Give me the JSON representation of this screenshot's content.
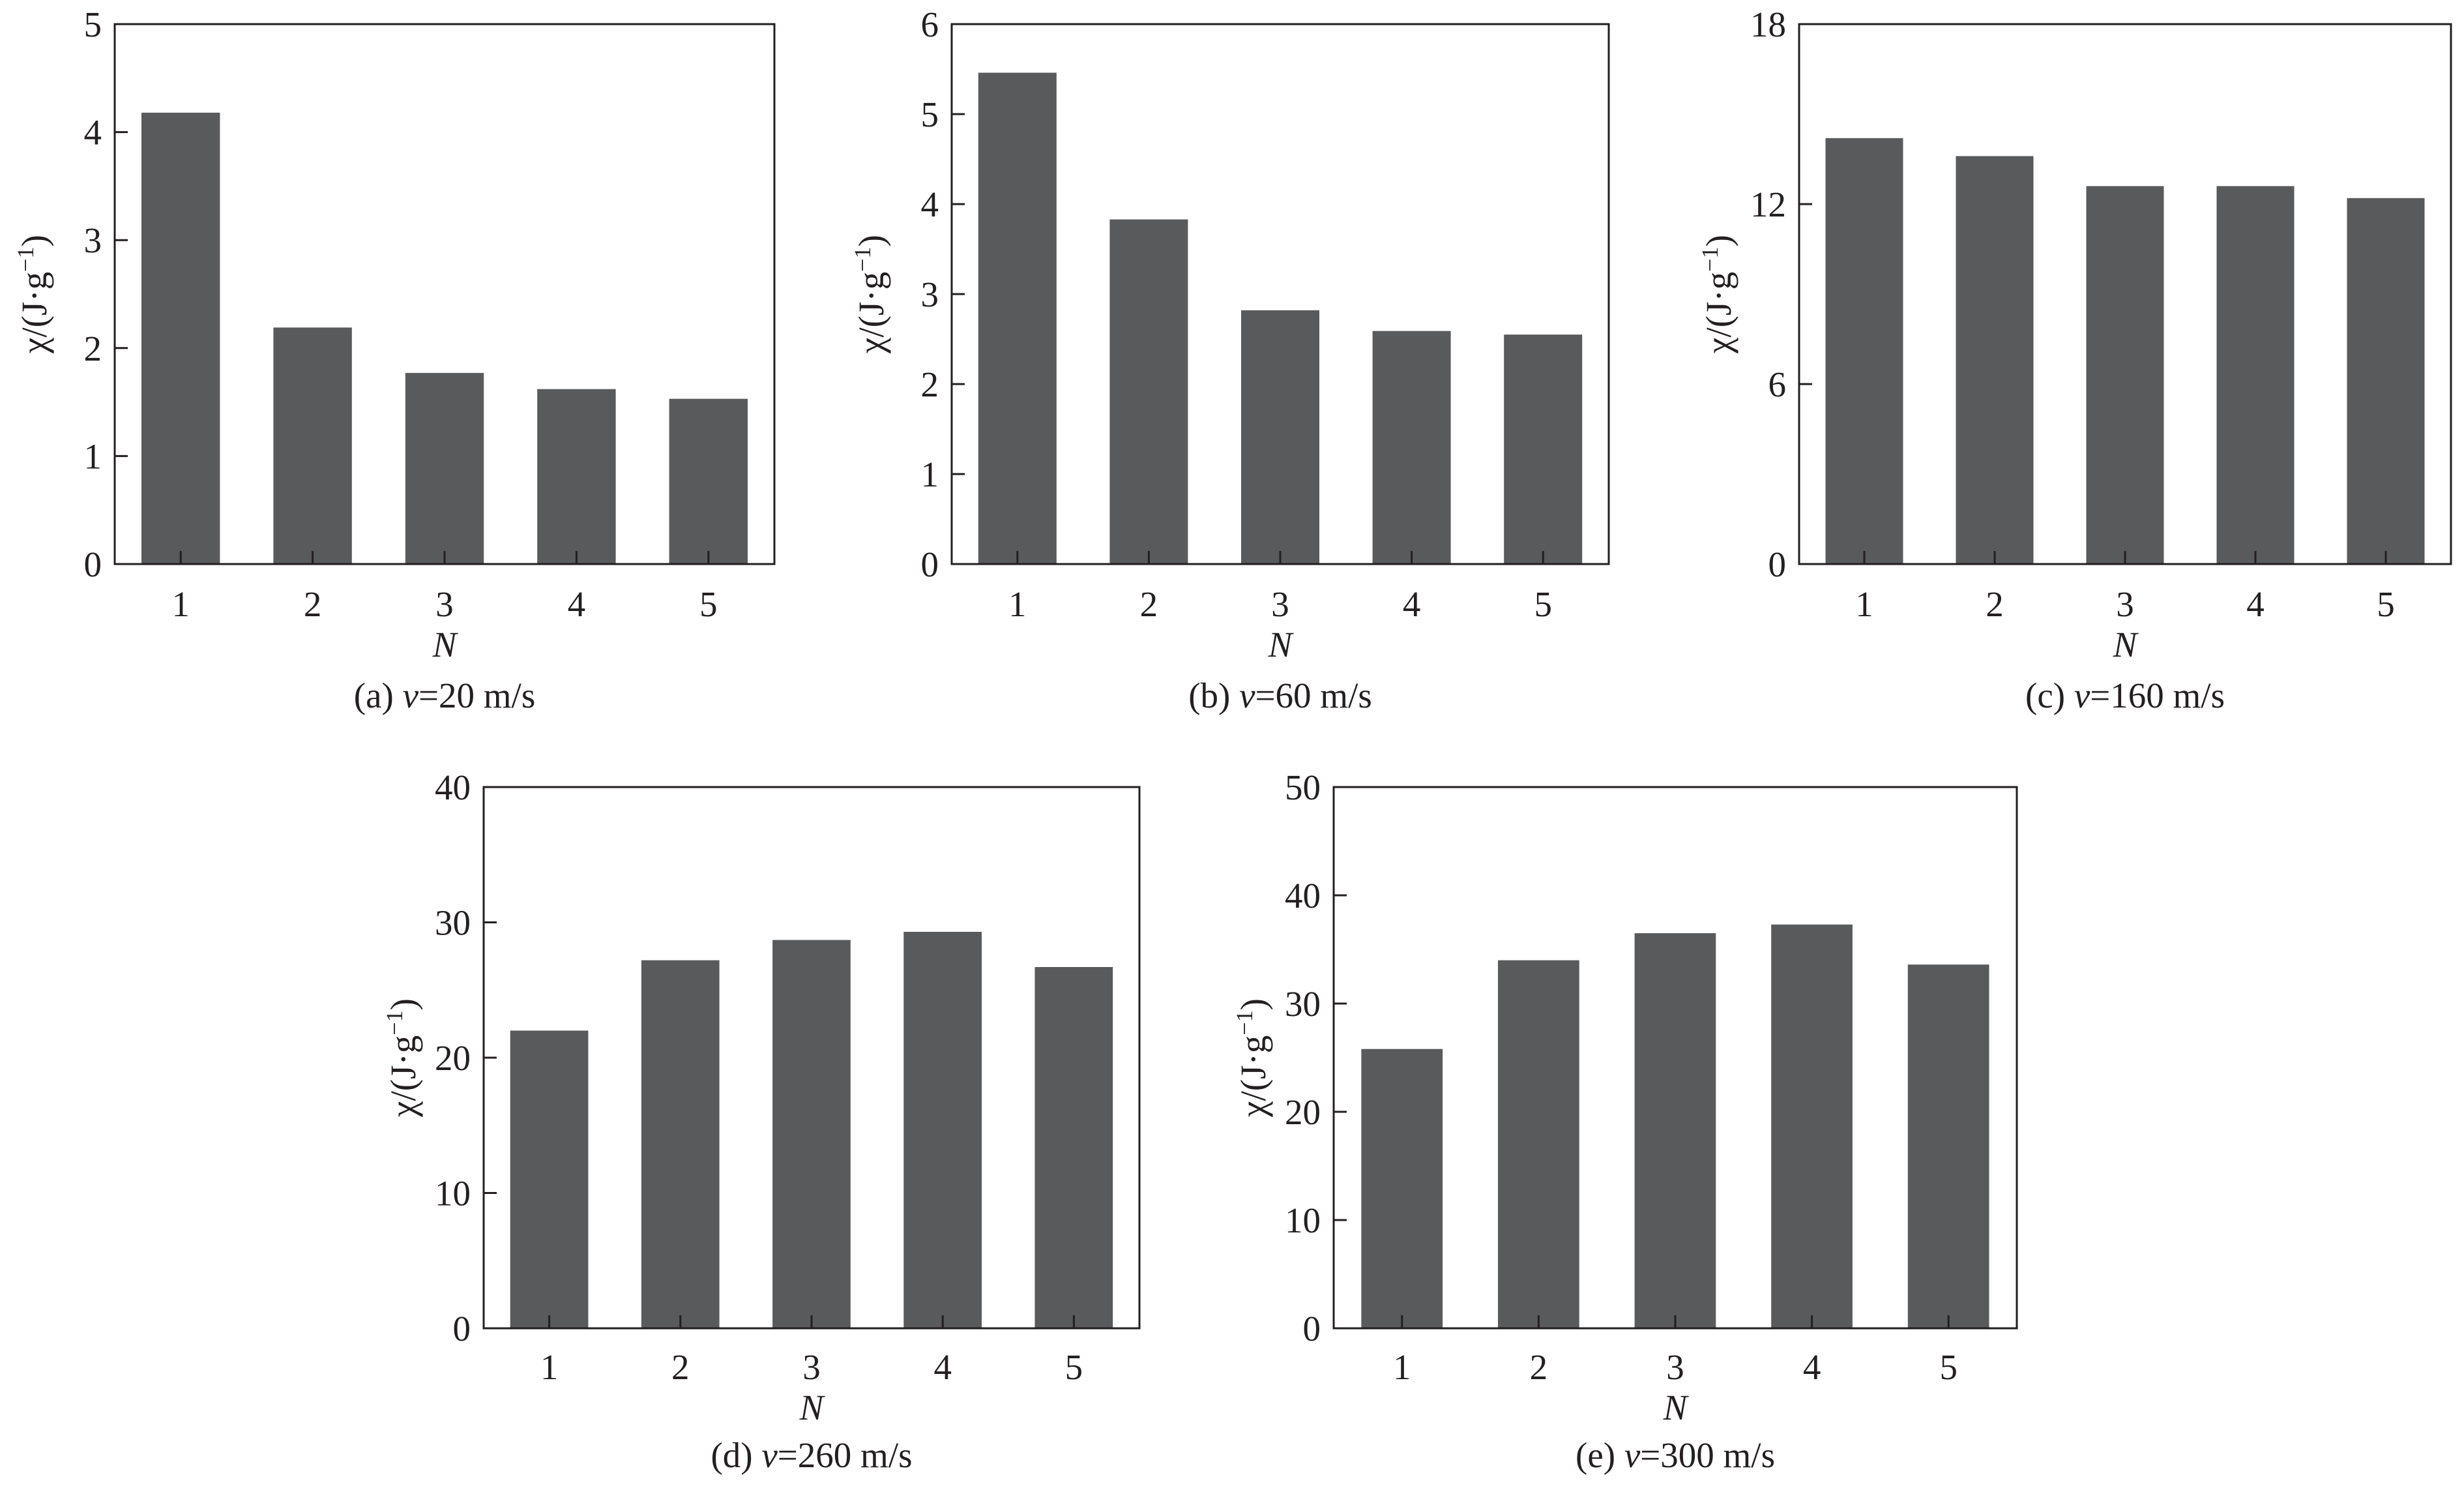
{
  "colors": {
    "bar": "#595a5c",
    "axis": "#231f20",
    "background": "#ffffff"
  },
  "chart_data": [
    {
      "type": "bar",
      "caption": {
        "prefix": "(a) ",
        "var": "v",
        "suffix": "=20 m/s"
      },
      "xlabel": "N",
      "ylabel": {
        "main": "χ/(J·g",
        "sup": "−1",
        "close": ")"
      },
      "categories": [
        "1",
        "2",
        "3",
        "4",
        "5"
      ],
      "values": [
        4.18,
        2.19,
        1.77,
        1.62,
        1.53
      ],
      "ylim": [
        0,
        5
      ],
      "yticks": [
        0,
        1,
        2,
        3,
        4,
        5
      ],
      "grid": false
    },
    {
      "type": "bar",
      "caption": {
        "prefix": "(b) ",
        "var": "v",
        "suffix": "=60 m/s"
      },
      "xlabel": "N",
      "ylabel": {
        "main": "χ/(J·g",
        "sup": "−1",
        "close": ")"
      },
      "categories": [
        "1",
        "2",
        "3",
        "4",
        "5"
      ],
      "values": [
        5.46,
        3.83,
        2.82,
        2.59,
        2.55
      ],
      "ylim": [
        0,
        6
      ],
      "yticks": [
        0,
        1,
        2,
        3,
        4,
        5,
        6
      ],
      "grid": false
    },
    {
      "type": "bar",
      "caption": {
        "prefix": "(c) ",
        "var": "v",
        "suffix": "=160 m/s"
      },
      "xlabel": "N",
      "ylabel": {
        "main": "χ/(J·g",
        "sup": "−1",
        "close": ")"
      },
      "categories": [
        "1",
        "2",
        "3",
        "4",
        "5"
      ],
      "values": [
        14.2,
        13.6,
        12.6,
        12.6,
        12.2
      ],
      "ylim": [
        0,
        18
      ],
      "yticks": [
        0,
        6,
        12,
        18
      ],
      "grid": false
    },
    {
      "type": "bar",
      "caption": {
        "prefix": "(d) ",
        "var": "v",
        "suffix": "=260 m/s"
      },
      "xlabel": "N",
      "ylabel": {
        "main": "χ/(J·g",
        "sup": "−1",
        "close": ")"
      },
      "categories": [
        "1",
        "2",
        "3",
        "4",
        "5"
      ],
      "values": [
        22.0,
        27.2,
        28.7,
        29.3,
        26.7
      ],
      "ylim": [
        0,
        40
      ],
      "yticks": [
        0,
        10,
        20,
        30,
        40
      ],
      "grid": false
    },
    {
      "type": "bar",
      "caption": {
        "prefix": "(e) ",
        "var": "v",
        "suffix": "=300 m/s"
      },
      "xlabel": "N",
      "ylabel": {
        "main": "χ/(J·g",
        "sup": "−1",
        "close": ")"
      },
      "categories": [
        "1",
        "2",
        "3",
        "4",
        "5"
      ],
      "values": [
        25.8,
        34.0,
        36.5,
        37.3,
        33.6
      ],
      "ylim": [
        0,
        50
      ],
      "yticks": [
        0,
        10,
        20,
        30,
        40,
        50
      ],
      "grid": false
    }
  ]
}
